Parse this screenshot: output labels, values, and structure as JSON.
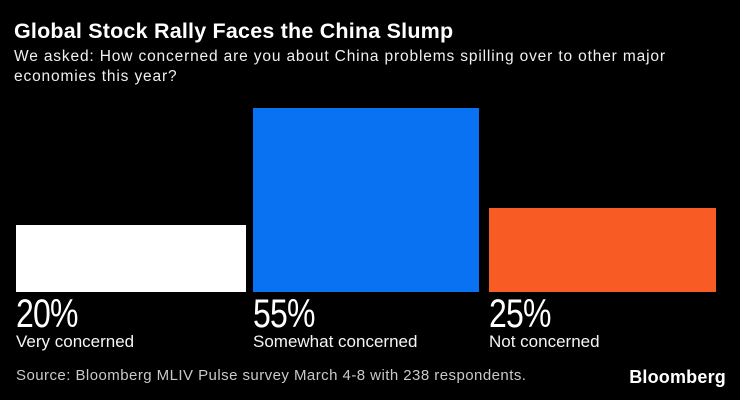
{
  "header": {
    "title": "Global Stock Rally Faces the China Slump",
    "subtitle_lines": [
      "We asked: How concerned are you about China problems spilling over to other major",
      "economies this year?"
    ]
  },
  "chart_data": {
    "type": "bar",
    "title": "Global Stock Rally Faces the China Slump",
    "subtitle": "We asked: How concerned are you about China problems spilling over to other major economies this year?",
    "categories": [
      "Very concerned",
      "Somewhat concerned",
      "Not concerned"
    ],
    "values": [
      20,
      55,
      25
    ],
    "unit": "%",
    "value_labels": [
      "20%",
      "55%",
      "25%"
    ],
    "bar_colors": [
      "#ffffff",
      "#0872f2",
      "#f95b25"
    ],
    "background": "#000000",
    "legend": false,
    "gridlines": false,
    "y_axis_shown": false,
    "ylim": [
      0,
      60
    ]
  },
  "footer": {
    "source": "Source: Bloomberg MLIV Pulse survey March 4-8 with 238 respondents.",
    "brand": "Bloomberg"
  },
  "colors": {
    "background": "#000000",
    "title_text": "#ffffff",
    "subtitle_text": "#f0f0f0",
    "category_text": "#f5f5f5",
    "value_text": "#ffffff",
    "source_text": "#c9c9c9",
    "brand_text": "#ffffff"
  }
}
